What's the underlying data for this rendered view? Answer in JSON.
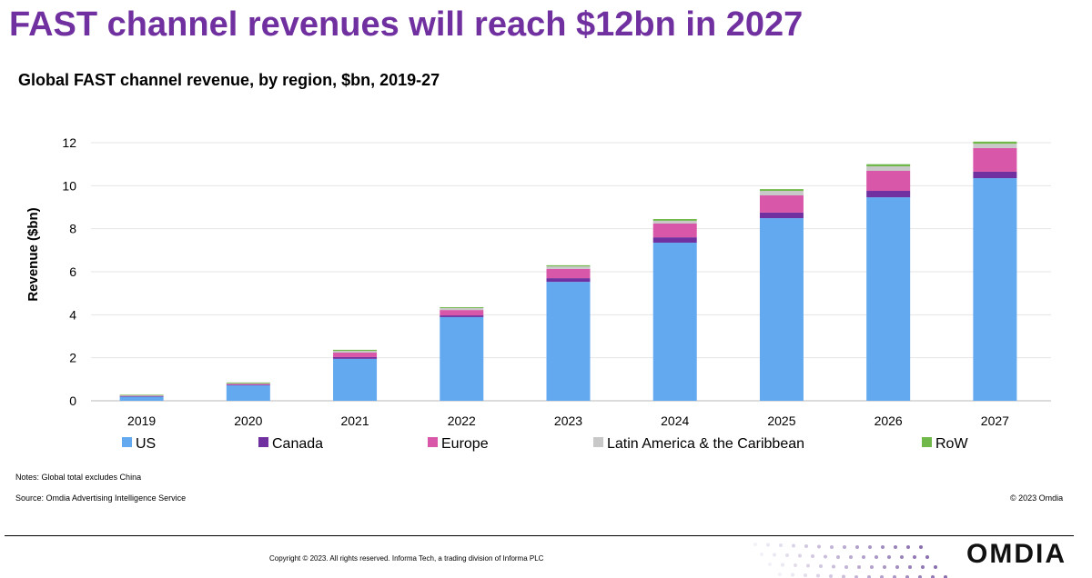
{
  "page": {
    "headline": "FAST channel revenues will reach $12bn in 2027",
    "notes": "Notes: Global total excludes China",
    "source": "Source: Omdia Advertising Intelligence Service",
    "credit": "© 2023 Omdia",
    "copyright": "Copyright © 2023. All rights reserved. Informa Tech, a trading division of Informa PLC",
    "logo_text": "OMDIA"
  },
  "chart_data": {
    "type": "bar",
    "stacked": true,
    "title": "Global FAST channel revenue, by region, $bn, 2019-27",
    "xlabel": "",
    "ylabel": "Revenue ($bn)",
    "ylim": [
      0,
      12
    ],
    "yticks": [
      0,
      2,
      4,
      6,
      8,
      10,
      12
    ],
    "grid": true,
    "legend_position": "bottom",
    "categories": [
      "2019",
      "2020",
      "2021",
      "2022",
      "2023",
      "2024",
      "2025",
      "2026",
      "2027"
    ],
    "series": [
      {
        "name": "US",
        "color": "#63a9f0",
        "values": [
          0.2,
          0.72,
          1.95,
          3.89,
          5.53,
          7.35,
          8.49,
          9.46,
          10.35
        ]
      },
      {
        "name": "Canada",
        "color": "#7030a0",
        "values": [
          0.01,
          0.02,
          0.08,
          0.08,
          0.17,
          0.25,
          0.26,
          0.3,
          0.3
        ]
      },
      {
        "name": "Europe",
        "color": "#d957a8",
        "values": [
          0.02,
          0.04,
          0.21,
          0.25,
          0.43,
          0.64,
          0.8,
          0.93,
          1.1
        ]
      },
      {
        "name": "Latin America & the Caribbean",
        "color": "#c8c8c8",
        "values": [
          0.02,
          0.03,
          0.08,
          0.09,
          0.12,
          0.13,
          0.21,
          0.21,
          0.2
        ]
      },
      {
        "name": "RoW",
        "color": "#70b84a",
        "values": [
          0.03,
          0.04,
          0.05,
          0.04,
          0.05,
          0.08,
          0.08,
          0.1,
          0.1
        ]
      }
    ]
  }
}
